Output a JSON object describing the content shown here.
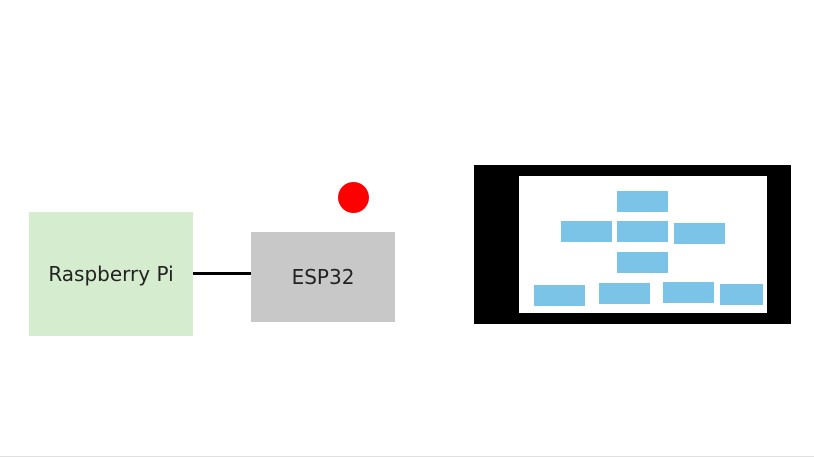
{
  "diagram": {
    "raspberry_pi": {
      "label": "Raspberry Pi",
      "fill": "#d5ecce"
    },
    "esp32": {
      "label": "ESP32",
      "fill": "#c8c8c8"
    },
    "connection": {
      "color": "#000000"
    },
    "status_led": {
      "color": "#ff0000"
    },
    "display": {
      "frame_color": "#000000",
      "screen_color": "#ffffff",
      "tile_color": "#7cc3e8",
      "tile_rows": [
        1,
        3,
        1,
        4
      ]
    }
  }
}
